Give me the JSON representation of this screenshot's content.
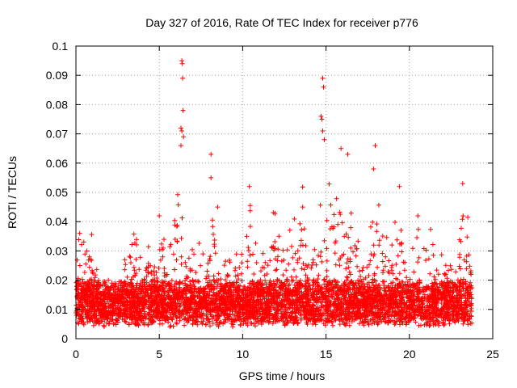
{
  "chart_data": {
    "type": "scatter",
    "title": "Day 327 of 2016, Rate Of TEC Index for receiver p776",
    "xlabel": "GPS time / hours",
    "ylabel": "ROTI / TECUs",
    "xlim": [
      0,
      25
    ],
    "ylim": [
      0,
      0.1
    ],
    "xticks": [
      0,
      5,
      10,
      15,
      20,
      25
    ],
    "yticks": [
      0,
      0.01,
      0.02,
      0.03,
      0.04,
      0.05,
      0.06,
      0.07,
      0.08,
      0.09,
      0.1
    ],
    "xtick_labels": [
      "0",
      "5",
      "10",
      "15",
      "20",
      "25"
    ],
    "ytick_labels": [
      "0",
      "0.01",
      "0.02",
      "0.03",
      "0.04",
      "0.05",
      "0.06",
      "0.07",
      "0.08",
      "0.09",
      "0.1"
    ],
    "grid": true,
    "marker": "+",
    "color": "#ff0000",
    "series": [
      {
        "name": "ROTI",
        "x_range": [
          0,
          23.75
        ],
        "typical_y_range": [
          0.004,
          0.022
        ],
        "peaks": [
          {
            "x": 6.35,
            "y": 0.095
          },
          {
            "x": 6.38,
            "y": 0.094
          },
          {
            "x": 6.4,
            "y": 0.089
          },
          {
            "x": 6.42,
            "y": 0.078
          },
          {
            "x": 6.3,
            "y": 0.072
          },
          {
            "x": 6.35,
            "y": 0.071
          },
          {
            "x": 6.45,
            "y": 0.069
          },
          {
            "x": 6.3,
            "y": 0.066
          },
          {
            "x": 8.1,
            "y": 0.063
          },
          {
            "x": 8.1,
            "y": 0.055
          },
          {
            "x": 14.8,
            "y": 0.089
          },
          {
            "x": 14.85,
            "y": 0.086
          },
          {
            "x": 14.7,
            "y": 0.076
          },
          {
            "x": 14.75,
            "y": 0.075
          },
          {
            "x": 14.8,
            "y": 0.071
          },
          {
            "x": 14.9,
            "y": 0.068
          },
          {
            "x": 15.9,
            "y": 0.065
          },
          {
            "x": 16.3,
            "y": 0.063
          },
          {
            "x": 17.95,
            "y": 0.066
          },
          {
            "x": 17.85,
            "y": 0.058
          },
          {
            "x": 19.4,
            "y": 0.052
          },
          {
            "x": 23.2,
            "y": 0.053
          },
          {
            "x": 13.6,
            "y": 0.045
          },
          {
            "x": 10.4,
            "y": 0.052
          },
          {
            "x": 5.0,
            "y": 0.042
          },
          {
            "x": 8.5,
            "y": 0.045
          }
        ]
      }
    ]
  }
}
